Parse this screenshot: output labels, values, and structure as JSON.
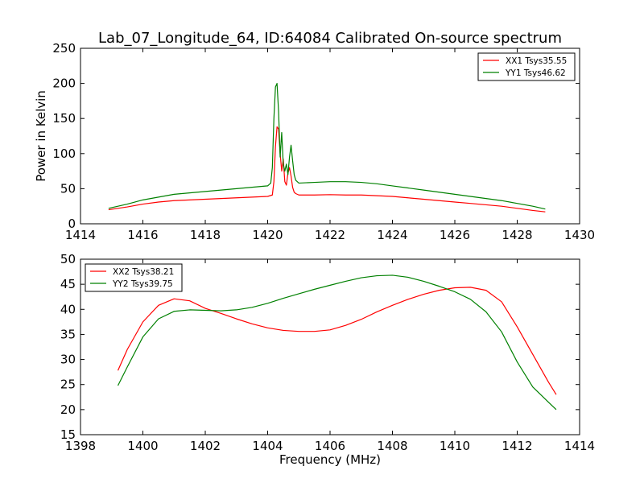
{
  "figure": {
    "title": "Lab_07_Longitude_64, ID:64084 Calibrated On-source spectrum",
    "xlabel": "Frequency (MHz)"
  },
  "chart_data": [
    {
      "type": "line",
      "title": "Lab_07_Longitude_64, ID:64084 Calibrated On-source spectrum",
      "xlabel": "",
      "ylabel": "Power in Kelvin",
      "xlim": [
        1414,
        1430
      ],
      "ylim": [
        0,
        250
      ],
      "xticks": [
        1414,
        1416,
        1418,
        1420,
        1422,
        1424,
        1426,
        1428,
        1430
      ],
      "yticks": [
        0,
        50,
        100,
        150,
        200,
        250
      ],
      "grid": false,
      "legend_position": "top-right",
      "series": [
        {
          "name": "XX1 Tsys35.55",
          "color": "#ff0000",
          "x": [
            1414.9,
            1415.5,
            1416,
            1416.5,
            1417,
            1417.5,
            1418,
            1418.5,
            1419,
            1419.5,
            1420,
            1420.15,
            1420.2,
            1420.25,
            1420.3,
            1420.35,
            1420.4,
            1420.45,
            1420.5,
            1420.55,
            1420.6,
            1420.65,
            1420.7,
            1420.75,
            1420.8,
            1420.85,
            1420.9,
            1421,
            1421.5,
            1422,
            1422.5,
            1423,
            1423.5,
            1424,
            1424.5,
            1425,
            1425.5,
            1426,
            1426.5,
            1427,
            1427.5,
            1428,
            1428.5,
            1428.9
          ],
          "y": [
            20,
            24,
            28,
            31,
            33,
            34,
            35,
            36,
            37,
            38,
            39,
            41,
            60,
            110,
            138,
            135,
            100,
            75,
            92,
            60,
            55,
            72,
            80,
            68,
            52,
            45,
            43,
            41,
            41,
            41.5,
            41,
            41,
            40,
            39,
            37,
            35,
            33,
            31,
            29,
            27,
            25,
            22,
            19,
            17
          ]
        },
        {
          "name": "YY1 Tsys46.62",
          "color": "#008000",
          "x": [
            1414.9,
            1415.5,
            1416,
            1416.5,
            1417,
            1417.5,
            1418,
            1418.5,
            1419,
            1419.5,
            1420,
            1420.1,
            1420.15,
            1420.2,
            1420.25,
            1420.3,
            1420.35,
            1420.4,
            1420.45,
            1420.5,
            1420.55,
            1420.6,
            1420.65,
            1420.7,
            1420.75,
            1420.8,
            1420.85,
            1420.9,
            1421,
            1421.5,
            1422,
            1422.5,
            1423,
            1423.5,
            1424,
            1424.5,
            1425,
            1425.5,
            1426,
            1426.5,
            1427,
            1427.5,
            1428,
            1428.5,
            1428.9
          ],
          "y": [
            22,
            28,
            34,
            38,
            42,
            44,
            46,
            48,
            50,
            52,
            54,
            58,
            80,
            150,
            195,
            200,
            160,
            95,
            130,
            85,
            75,
            85,
            70,
            95,
            112,
            90,
            70,
            62,
            58,
            59,
            60,
            60,
            59,
            57,
            54,
            51,
            48,
            45,
            42,
            39,
            36,
            33,
            29,
            25,
            21
          ]
        }
      ]
    },
    {
      "type": "line",
      "title": "",
      "xlabel": "Frequency (MHz)",
      "ylabel": "",
      "xlim": [
        1398,
        1414
      ],
      "ylim": [
        15,
        50
      ],
      "xticks": [
        1398,
        1400,
        1402,
        1404,
        1406,
        1408,
        1410,
        1412,
        1414
      ],
      "yticks": [
        15,
        20,
        25,
        30,
        35,
        40,
        45,
        50
      ],
      "grid": false,
      "legend_position": "top-left",
      "series": [
        {
          "name": "XX2 Tsys38.21",
          "color": "#ff0000",
          "x": [
            1399.2,
            1399.5,
            1400,
            1400.5,
            1401,
            1401.5,
            1402,
            1402.5,
            1403,
            1403.5,
            1404,
            1404.5,
            1405,
            1405.5,
            1406,
            1406.5,
            1407,
            1407.5,
            1408,
            1408.5,
            1409,
            1409.5,
            1410,
            1410.5,
            1411,
            1411.5,
            1412,
            1412.5,
            1413,
            1413.25
          ],
          "y": [
            27.8,
            32,
            37.5,
            40.8,
            42.1,
            41.7,
            40.2,
            39.2,
            38.1,
            37.1,
            36.3,
            35.8,
            35.6,
            35.6,
            35.9,
            36.8,
            38,
            39.5,
            40.8,
            42,
            43,
            43.8,
            44.3,
            44.4,
            43.8,
            41.5,
            36.5,
            31,
            25.5,
            23
          ]
        },
        {
          "name": "YY2 Tsys39.75",
          "color": "#008000",
          "x": [
            1399.2,
            1399.5,
            1400,
            1400.5,
            1401,
            1401.5,
            1402,
            1402.5,
            1403,
            1403.5,
            1404,
            1404.5,
            1405,
            1405.5,
            1406,
            1406.5,
            1407,
            1407.5,
            1408,
            1408.5,
            1409,
            1409.5,
            1410,
            1410.5,
            1411,
            1411.5,
            1412,
            1412.5,
            1413,
            1413.25
          ],
          "y": [
            24.8,
            28.5,
            34.5,
            38.1,
            39.6,
            39.9,
            39.8,
            39.7,
            39.9,
            40.4,
            41.2,
            42.2,
            43.1,
            44,
            44.8,
            45.6,
            46.3,
            46.7,
            46.8,
            46.4,
            45.6,
            44.6,
            43.5,
            42,
            39.5,
            35.5,
            29.5,
            24.5,
            21.5,
            20
          ]
        }
      ]
    }
  ]
}
